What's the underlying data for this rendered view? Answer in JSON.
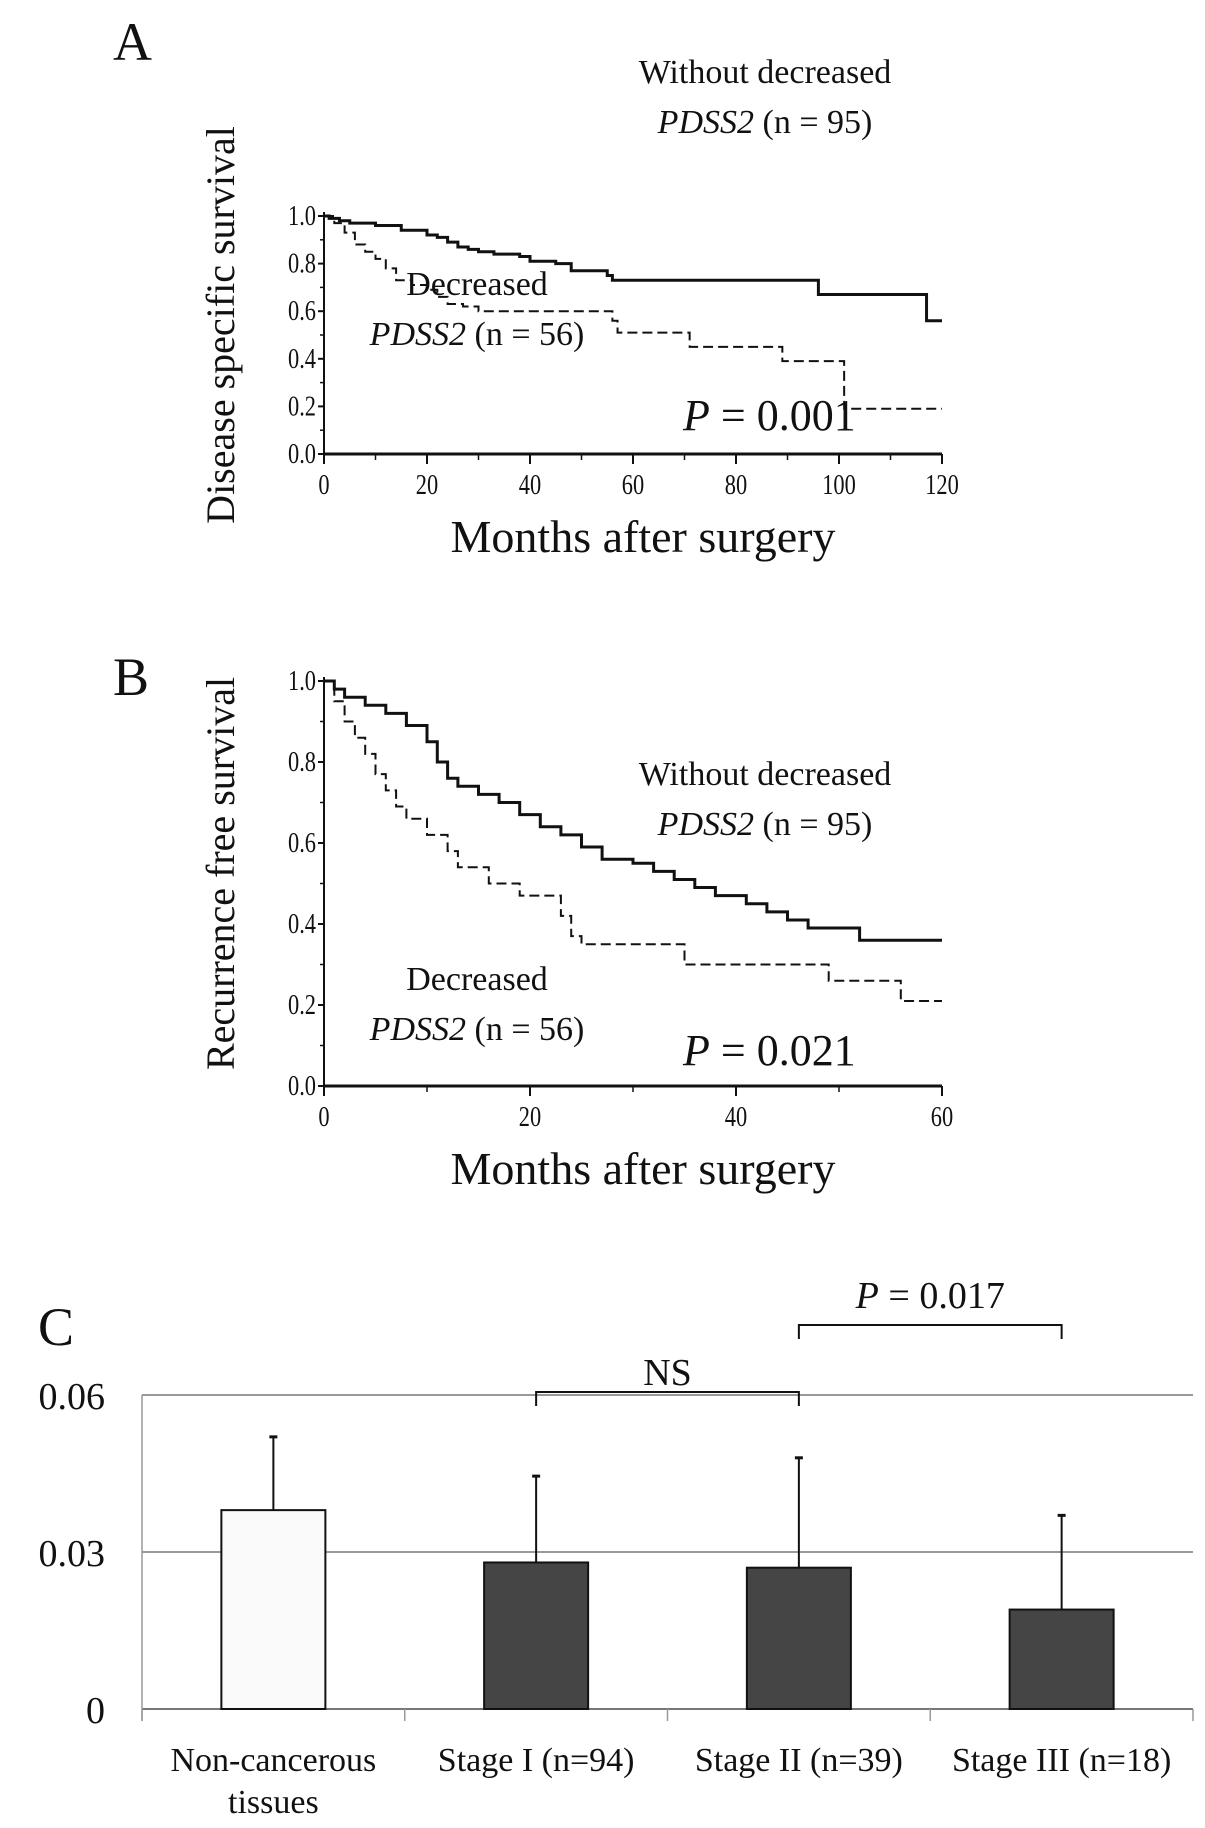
{
  "chart_data": [
    {
      "panel": "A",
      "type": "line",
      "xlabel": "Months after surgery",
      "ylabel": "Disease specific survival",
      "xlim": [
        0,
        120
      ],
      "ylim": [
        0,
        1
      ],
      "xticks": [
        "0",
        "20",
        "40",
        "60",
        "80",
        "100",
        "120"
      ],
      "yticks": [
        "0.0",
        "0.2",
        "0.4",
        "0.6",
        "0.8",
        "1.0"
      ],
      "pvalue_label": "P",
      "pvalue_text": "= 0.001",
      "series": [
        {
          "name": "Without decreased",
          "gene": "PDSS2",
          "n": "(n = 95)",
          "style": "solid",
          "points": [
            [
              0,
              1
            ],
            [
              1,
              0.99
            ],
            [
              3,
              0.98
            ],
            [
              5,
              0.97
            ],
            [
              10,
              0.96
            ],
            [
              15,
              0.94
            ],
            [
              20,
              0.92
            ],
            [
              22,
              0.91
            ],
            [
              24,
              0.89
            ],
            [
              26,
              0.87
            ],
            [
              28,
              0.86
            ],
            [
              30,
              0.85
            ],
            [
              33,
              0.84
            ],
            [
              38,
              0.83
            ],
            [
              40,
              0.81
            ],
            [
              45,
              0.8
            ],
            [
              48,
              0.77
            ],
            [
              55,
              0.75
            ],
            [
              56,
              0.73
            ],
            [
              96,
              0.67
            ],
            [
              117,
              0.56
            ],
            [
              120,
              0.56
            ]
          ]
        },
        {
          "name": "Decreased",
          "gene": "PDSS2",
          "n": "(n = 56)",
          "style": "dashed",
          "points": [
            [
              0,
              1
            ],
            [
              2,
              0.97
            ],
            [
              4,
              0.93
            ],
            [
              6,
              0.88
            ],
            [
              8,
              0.85
            ],
            [
              10,
              0.82
            ],
            [
              12,
              0.78
            ],
            [
              14,
              0.73
            ],
            [
              17,
              0.71
            ],
            [
              20,
              0.69
            ],
            [
              22,
              0.66
            ],
            [
              24,
              0.63
            ],
            [
              27,
              0.62
            ],
            [
              30,
              0.6
            ],
            [
              56,
              0.56
            ],
            [
              57,
              0.51
            ],
            [
              71,
              0.45
            ],
            [
              89,
              0.39
            ],
            [
              101,
              0.19
            ],
            [
              120,
              0.19
            ]
          ]
        }
      ]
    },
    {
      "panel": "B",
      "type": "line",
      "xlabel": "Months after surgery",
      "ylabel": "Recurrence free survival",
      "xlim": [
        0,
        60
      ],
      "ylim": [
        0,
        1
      ],
      "xticks": [
        "0",
        "20",
        "40",
        "60"
      ],
      "yticks": [
        "0.0",
        "0.2",
        "0.4",
        "0.6",
        "0.8",
        "1.0"
      ],
      "pvalue_label": "P",
      "pvalue_text": "= 0.021",
      "series": [
        {
          "name": "Without decreased",
          "gene": "PDSS2",
          "n": "(n = 95)",
          "style": "solid",
          "points": [
            [
              0,
              1
            ],
            [
              1,
              0.98
            ],
            [
              2,
              0.96
            ],
            [
              4,
              0.94
            ],
            [
              6,
              0.92
            ],
            [
              8,
              0.89
            ],
            [
              10,
              0.85
            ],
            [
              11,
              0.8
            ],
            [
              12,
              0.76
            ],
            [
              13,
              0.74
            ],
            [
              15,
              0.72
            ],
            [
              17,
              0.7
            ],
            [
              19,
              0.67
            ],
            [
              21,
              0.64
            ],
            [
              23,
              0.62
            ],
            [
              25,
              0.59
            ],
            [
              27,
              0.56
            ],
            [
              30,
              0.55
            ],
            [
              32,
              0.53
            ],
            [
              34,
              0.51
            ],
            [
              36,
              0.49
            ],
            [
              38,
              0.47
            ],
            [
              41,
              0.45
            ],
            [
              43,
              0.43
            ],
            [
              45,
              0.41
            ],
            [
              47,
              0.39
            ],
            [
              52,
              0.36
            ],
            [
              60,
              0.36
            ]
          ]
        },
        {
          "name": "Decreased",
          "gene": "PDSS2",
          "n": "(n = 56)",
          "style": "dashed",
          "points": [
            [
              0,
              1
            ],
            [
              1,
              0.95
            ],
            [
              2,
              0.9
            ],
            [
              3,
              0.86
            ],
            [
              4,
              0.82
            ],
            [
              5,
              0.77
            ],
            [
              6,
              0.73
            ],
            [
              7,
              0.69
            ],
            [
              8,
              0.66
            ],
            [
              10,
              0.62
            ],
            [
              12,
              0.58
            ],
            [
              13,
              0.54
            ],
            [
              16,
              0.5
            ],
            [
              19,
              0.47
            ],
            [
              23,
              0.42
            ],
            [
              24,
              0.37
            ],
            [
              25,
              0.35
            ],
            [
              35,
              0.3
            ],
            [
              49,
              0.26
            ],
            [
              56,
              0.21
            ],
            [
              60,
              0.21
            ]
          ]
        }
      ]
    },
    {
      "panel": "C",
      "type": "bar",
      "ylim": [
        0,
        0.06
      ],
      "yticks": [
        "0",
        "0.03",
        "0.06"
      ],
      "grid": true,
      "categories": [
        [
          "Non-cancerous",
          "tissues"
        ],
        [
          "Stage I (n=94)"
        ],
        [
          "Stage II (n=39)"
        ],
        [
          "Stage III (n=18)"
        ]
      ],
      "values": [
        0.038,
        0.028,
        0.027,
        0.019
      ],
      "errors": [
        0.014,
        0.0165,
        0.021,
        0.018
      ],
      "colors": [
        "#fafafa",
        "#454545",
        "#454545",
        "#454545"
      ],
      "brackets": [
        {
          "from": 1,
          "to": 2,
          "label": "NS",
          "italic_prefix": ""
        },
        {
          "from": 2,
          "to": 3,
          "label": "= 0.017",
          "italic_prefix": "P"
        }
      ]
    }
  ]
}
